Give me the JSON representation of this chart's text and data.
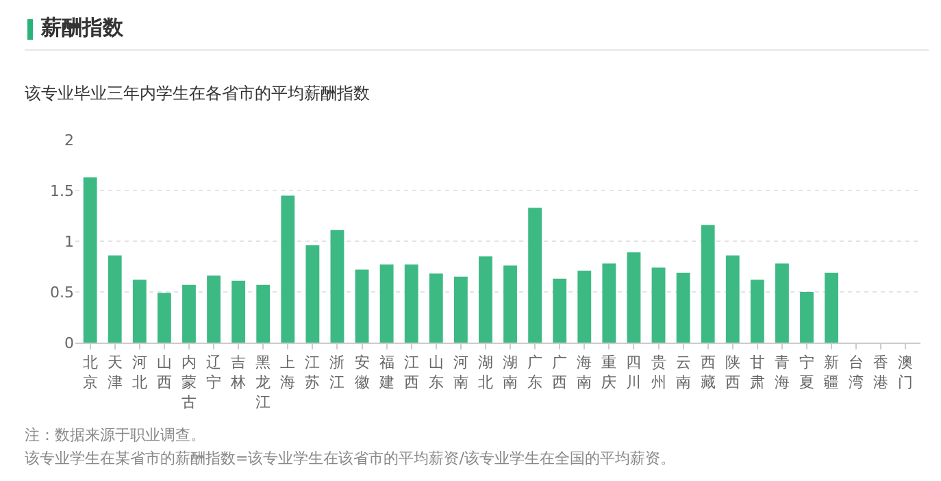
{
  "chart_data": {
    "type": "bar",
    "title": "薪酬指数",
    "subtitle": "该专业毕业三年内学生在各省市的平均薪酬指数",
    "categories": [
      "北京",
      "天津",
      "河北",
      "山西",
      "内蒙古",
      "辽宁",
      "吉林",
      "黑龙江",
      "上海",
      "江苏",
      "浙江",
      "安徽",
      "福建",
      "江西",
      "山东",
      "河南",
      "湖北",
      "湖南",
      "广东",
      "广西",
      "海南",
      "重庆",
      "四川",
      "贵州",
      "云南",
      "西藏",
      "陕西",
      "甘肃",
      "青海",
      "宁夏",
      "新疆",
      "台湾",
      "香港",
      "澳门"
    ],
    "values": [
      1.63,
      0.86,
      0.62,
      0.49,
      0.57,
      0.66,
      0.61,
      0.57,
      1.45,
      0.96,
      1.11,
      0.72,
      0.77,
      0.77,
      0.68,
      0.65,
      0.85,
      0.76,
      1.33,
      0.63,
      0.71,
      0.78,
      0.89,
      0.74,
      0.69,
      1.16,
      0.86,
      0.62,
      0.78,
      0.5,
      0.69,
      null,
      null,
      null
    ],
    "color": "#3dba84",
    "ylim": [
      0,
      2
    ],
    "yticks": [
      0,
      {
        "value": 0.5,
        "label": "0.5"
      },
      1,
      {
        "value": 1.5,
        "label": "1.5"
      },
      2
    ],
    "grid": "y",
    "annotations": [
      "注：数据来源于职业调查。",
      "该专业学生在某省市的薪酬指数=该专业学生在该省市的平均薪资/该专业学生在全国的平均薪资。"
    ]
  }
}
